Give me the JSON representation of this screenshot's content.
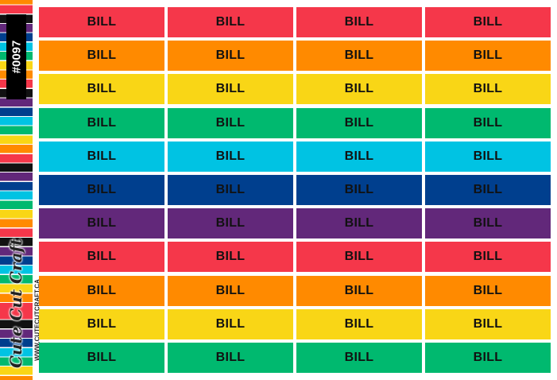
{
  "sheet": {
    "code": "#0097",
    "brand": "Cute Cut Craft",
    "website": "WWW.CUTECUTCRAFT.CA",
    "sticker_label": "BILL",
    "columns": 4,
    "rows": [
      {
        "color": "#f5374a",
        "label": "BILL"
      },
      {
        "color": "#ff8a00",
        "label": "BILL"
      },
      {
        "color": "#f9d616",
        "label": "BILL"
      },
      {
        "color": "#00b96f",
        "label": "BILL"
      },
      {
        "color": "#00c3e3",
        "label": "BILL"
      },
      {
        "color": "#003f8e",
        "label": "BILL"
      },
      {
        "color": "#62287a",
        "label": "BILL"
      },
      {
        "color": "#f5374a",
        "label": "BILL"
      },
      {
        "color": "#ff8a00",
        "label": "BILL"
      },
      {
        "color": "#f9d616",
        "label": "BILL"
      },
      {
        "color": "#00b96f",
        "label": "BILL"
      }
    ]
  }
}
